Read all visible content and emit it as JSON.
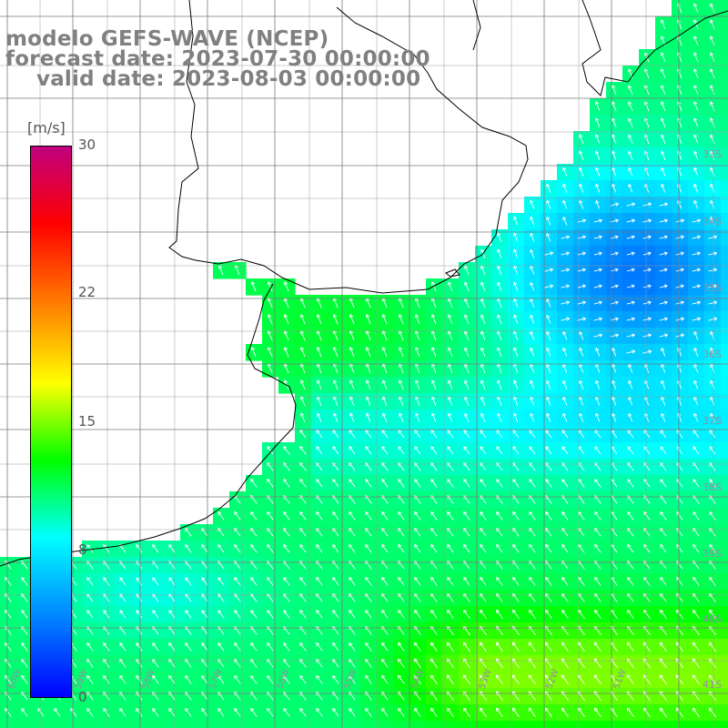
{
  "title": {
    "line1": "modelo GEFS-WAVE (NCEP)",
    "line2": "forecast date: 2023-07-30 00:00:00",
    "line3": "valid date: 2023-08-03 00:00:00"
  },
  "colorbar": {
    "unit": "[m/s]",
    "ticks": [
      {
        "label": "30",
        "value": 30
      },
      {
        "label": "22",
        "value": 22
      },
      {
        "label": "15",
        "value": 15
      },
      {
        "label": "8",
        "value": 8
      },
      {
        "label": "0",
        "value": 0
      }
    ],
    "colors": [
      "#0000ff",
      "#0080ff",
      "#00ffff",
      "#00ff00",
      "#ffff00",
      "#ff8000",
      "#ff0000",
      "#c00080"
    ]
  },
  "map": {
    "variable": "wind speed",
    "lat_labels": [
      "33S",
      "34S",
      "35S",
      "36S",
      "37S",
      "38S",
      "39S",
      "40S",
      "41S"
    ],
    "lon_labels": [
      "60W",
      "59W",
      "58W",
      "57W",
      "56W",
      "55W",
      "54W",
      "53W",
      "52W",
      "51W"
    ],
    "region": "Rio de la Plata / Uruguay coast, South Atlantic"
  }
}
